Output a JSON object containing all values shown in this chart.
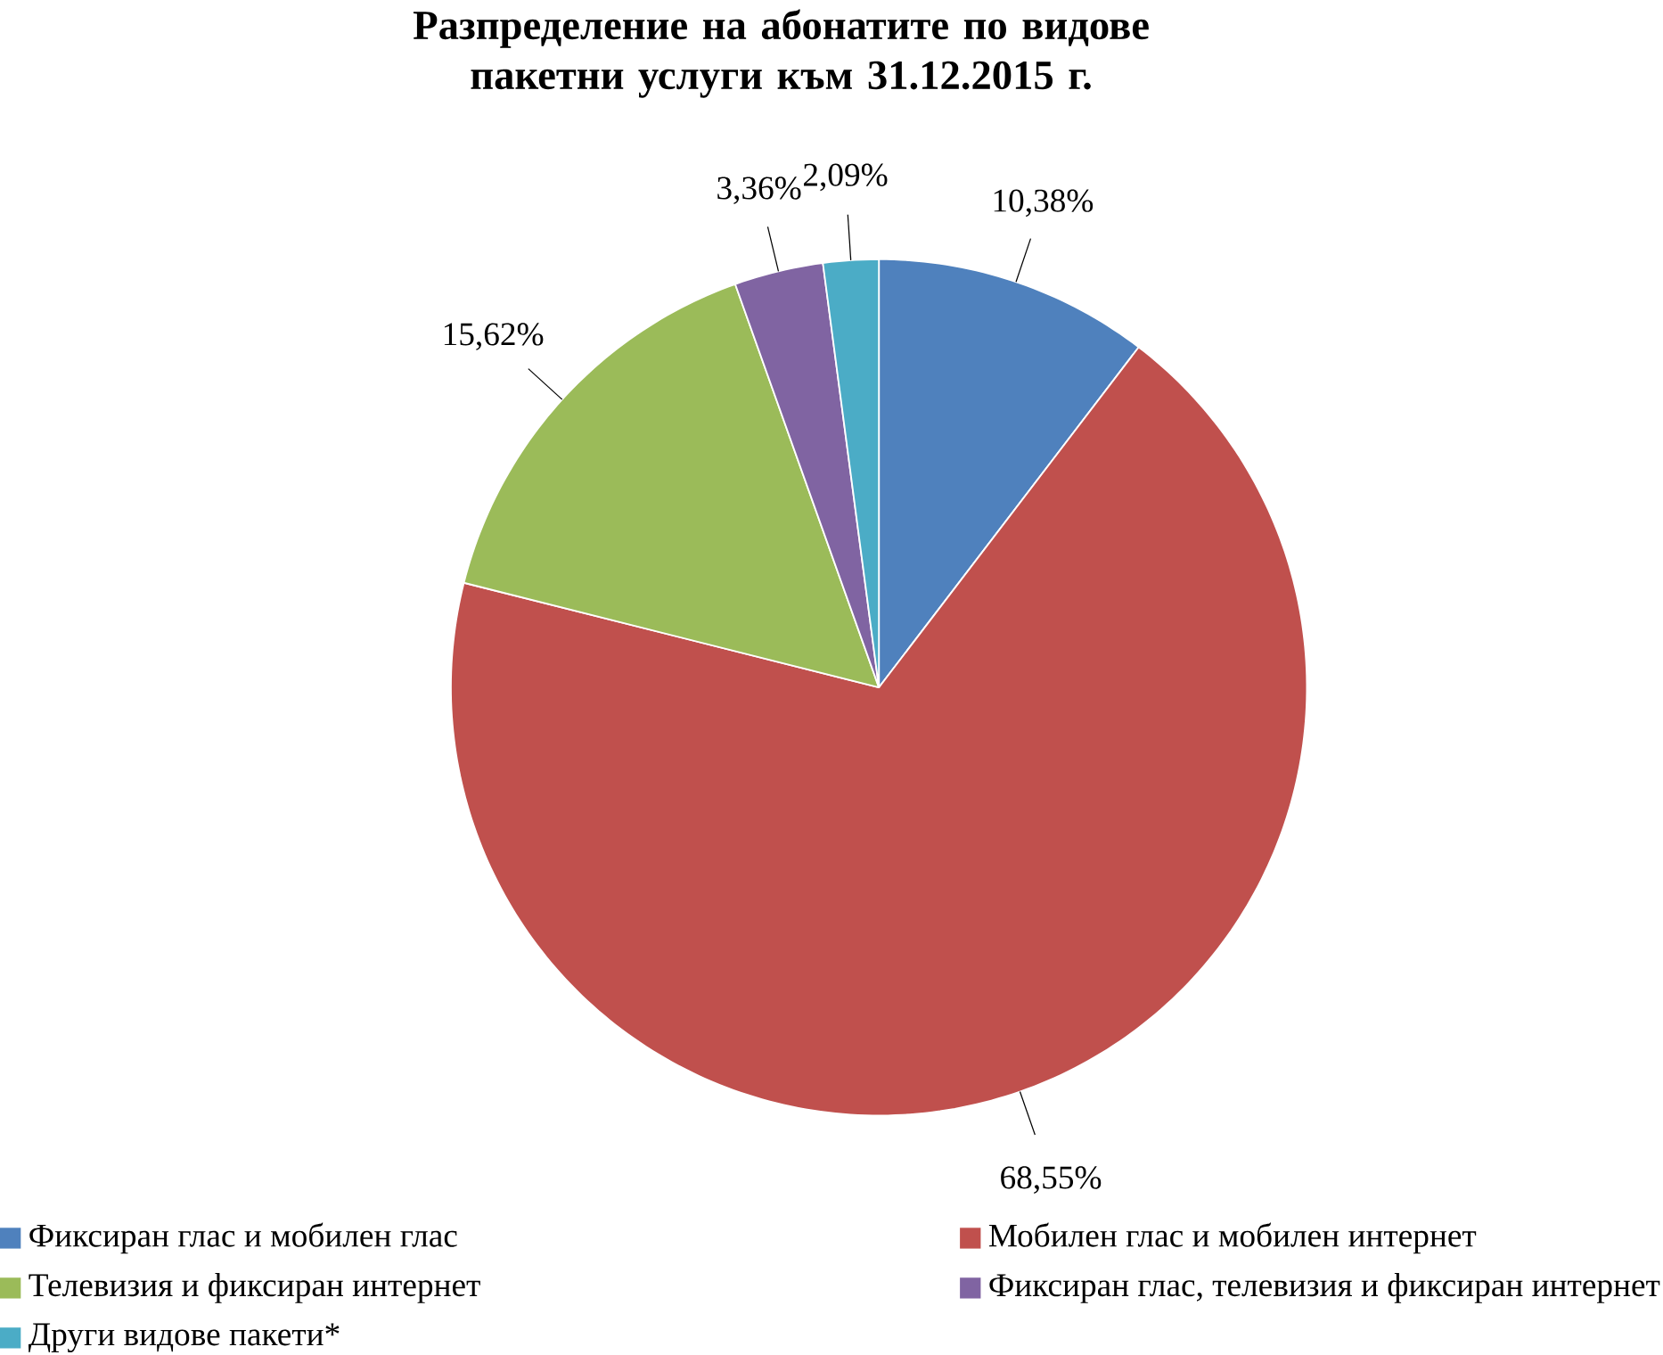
{
  "chart_data": {
    "type": "pie",
    "title": "Разпределение на абонатите по видове пакетни услуги към 31.12.2015 г.",
    "categories": [
      "Фиксиран глас и мобилен глас",
      "Мобилен глас и мобилен интернет",
      "Телевизия и фиксиран интернет",
      "Фиксиран глас, телевизия и фиксиран интернет",
      "Други видове пакети*"
    ],
    "values": [
      10.38,
      68.55,
      15.62,
      3.36,
      2.09
    ],
    "colors": [
      "#4f81bd",
      "#c0504d",
      "#9bbb59",
      "#8064a2",
      "#4bacc6"
    ],
    "value_labels": [
      "10,38%",
      "68,55%",
      "15,62%",
      "3,36%",
      "2,09%"
    ],
    "legend": "bottom"
  }
}
